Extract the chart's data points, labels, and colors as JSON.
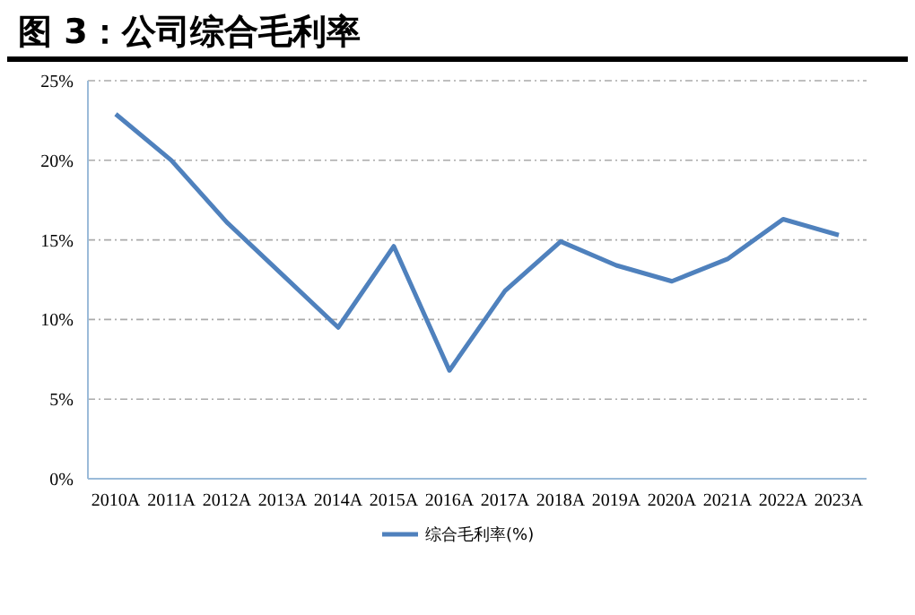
{
  "chart_data": {
    "type": "line",
    "title": "图 3：公司综合毛利率",
    "categories": [
      "2010A",
      "2011A",
      "2012A",
      "2013A",
      "2014A",
      "2015A",
      "2016A",
      "2017A",
      "2018A",
      "2019A",
      "2020A",
      "2021A",
      "2022A",
      "2023A"
    ],
    "series": [
      {
        "name": "综合毛利率(%)",
        "color": "#4f81bd",
        "values": [
          22.9,
          20.0,
          16.1,
          12.8,
          9.5,
          14.6,
          6.8,
          11.8,
          14.9,
          13.4,
          12.4,
          13.8,
          16.3,
          15.3
        ]
      }
    ],
    "ylim": [
      0,
      25
    ],
    "yticks": [
      {
        "value": 0,
        "label": "0%"
      },
      {
        "value": 5,
        "label": "5%"
      },
      {
        "value": 10,
        "label": "10%"
      },
      {
        "value": 15,
        "label": "15%"
      },
      {
        "value": 20,
        "label": "20%"
      },
      {
        "value": 25,
        "label": "25%"
      }
    ],
    "grid": "y",
    "legend": "bottom",
    "line_style": "solid"
  }
}
